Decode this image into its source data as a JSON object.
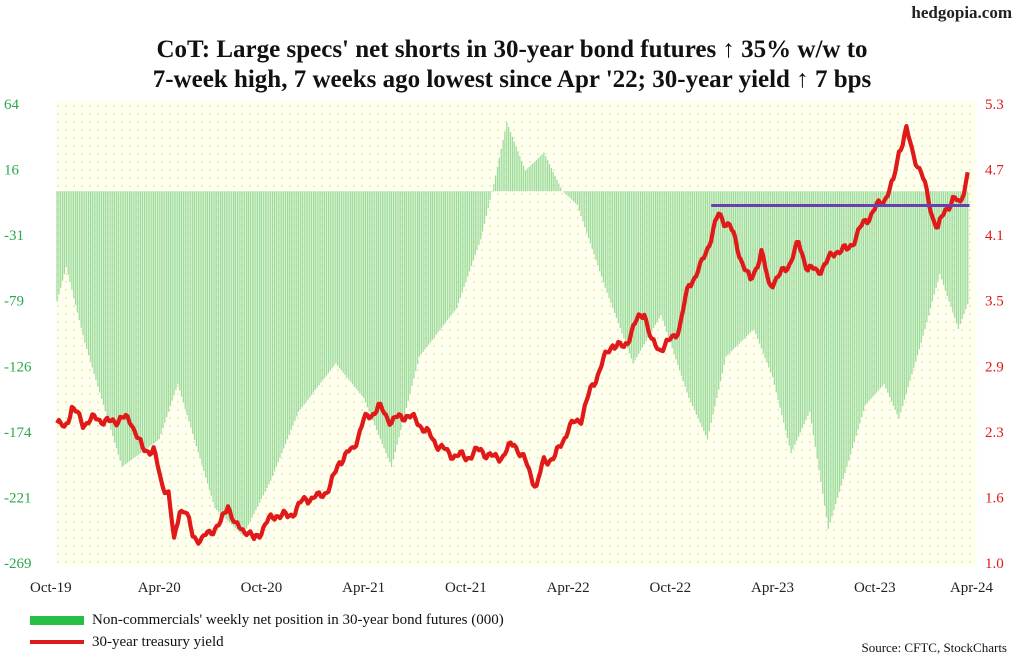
{
  "watermark": "hedgopia.com",
  "title_line1": "CoT: Large specs' net shorts in 30-year bond futures ↑ 35% w/w to",
  "title_line2": "7-week high, 7 weeks ago lowest since Apr '22; 30-year yield ↑ 7 bps",
  "legend": {
    "bars": "Non-commercials' weekly net position in 30-year bond futures (000)",
    "line": "30-year treasury yield"
  },
  "source": "Source: CFTC, StockCharts",
  "chart_data": {
    "type": "bar+line",
    "x_tick_labels": [
      "Oct-19",
      "Apr-20",
      "Oct-20",
      "Apr-21",
      "Oct-21",
      "Apr-22",
      "Oct-22",
      "Apr-23",
      "Oct-23",
      "Apr-24"
    ],
    "left_axis": {
      "ticks": [
        "64",
        "16",
        "-31",
        "-79",
        "-126",
        "-174",
        "-221",
        "-269"
      ],
      "range": [
        -269,
        64
      ],
      "color": "#2aa84a"
    },
    "right_axis": {
      "ticks": [
        "5.3",
        "4.7",
        "4.1",
        "3.5",
        "2.9",
        "2.3",
        "1.6",
        "1.0"
      ],
      "range": [
        1.0,
        5.3
      ],
      "color": "#e01919"
    },
    "bar_series": {
      "name": "Non-commercials' weekly net position in 30-year bond futures (000)",
      "color": "#9ddc9d",
      "keypoints": [
        {
          "x": 0,
          "y": -80
        },
        {
          "x": 0.5,
          "y": -55
        },
        {
          "x": 1.5,
          "y": -110
        },
        {
          "x": 3.5,
          "y": -200
        },
        {
          "x": 5.5,
          "y": -180
        },
        {
          "x": 6.5,
          "y": -140
        },
        {
          "x": 8.5,
          "y": -230
        },
        {
          "x": 10,
          "y": -250
        },
        {
          "x": 11.5,
          "y": -210
        },
        {
          "x": 13,
          "y": -160
        },
        {
          "x": 15,
          "y": -125
        },
        {
          "x": 16.5,
          "y": -150
        },
        {
          "x": 18,
          "y": -200
        },
        {
          "x": 19.5,
          "y": -120
        },
        {
          "x": 21.5,
          "y": -85
        },
        {
          "x": 22.8,
          "y": -35
        },
        {
          "x": 23.5,
          "y": 5
        },
        {
          "x": 24.2,
          "y": 50
        },
        {
          "x": 25.2,
          "y": 15
        },
        {
          "x": 26.2,
          "y": 28
        },
        {
          "x": 27.2,
          "y": 0
        },
        {
          "x": 28,
          "y": -10
        },
        {
          "x": 29.5,
          "y": -70
        },
        {
          "x": 31,
          "y": -125
        },
        {
          "x": 32.5,
          "y": -90
        },
        {
          "x": 34,
          "y": -150
        },
        {
          "x": 35,
          "y": -180
        },
        {
          "x": 36,
          "y": -120
        },
        {
          "x": 37.5,
          "y": -100
        },
        {
          "x": 38.5,
          "y": -135
        },
        {
          "x": 39.5,
          "y": -190
        },
        {
          "x": 40.5,
          "y": -160
        },
        {
          "x": 41.5,
          "y": -245
        },
        {
          "x": 42.5,
          "y": -200
        },
        {
          "x": 43.5,
          "y": -155
        },
        {
          "x": 44.5,
          "y": -140
        },
        {
          "x": 45.3,
          "y": -165
        },
        {
          "x": 46.5,
          "y": -110
        },
        {
          "x": 47.5,
          "y": -60
        },
        {
          "x": 48.5,
          "y": -100
        },
        {
          "x": 49,
          "y": -82
        }
      ]
    },
    "line_series": {
      "name": "30-year treasury yield",
      "color": "#e01919",
      "keypoints": [
        {
          "x": 0,
          "y": 2.3
        },
        {
          "x": 0.4,
          "y": 2.25
        },
        {
          "x": 0.8,
          "y": 2.45
        },
        {
          "x": 1.4,
          "y": 2.3
        },
        {
          "x": 2.2,
          "y": 2.35
        },
        {
          "x": 2.8,
          "y": 2.3
        },
        {
          "x": 3.4,
          "y": 2.35
        },
        {
          "x": 4,
          "y": 2.32
        },
        {
          "x": 4.6,
          "y": 2.05
        },
        {
          "x": 5.2,
          "y": 2.05
        },
        {
          "x": 5.6,
          "y": 1.75
        },
        {
          "x": 6,
          "y": 1.65
        },
        {
          "x": 6.3,
          "y": 1.18
        },
        {
          "x": 6.6,
          "y": 1.5
        },
        {
          "x": 6.9,
          "y": 1.48
        },
        {
          "x": 7.3,
          "y": 1.25
        },
        {
          "x": 7.8,
          "y": 1.2
        },
        {
          "x": 8.3,
          "y": 1.3
        },
        {
          "x": 8.8,
          "y": 1.35
        },
        {
          "x": 9.2,
          "y": 1.55
        },
        {
          "x": 9.6,
          "y": 1.33
        },
        {
          "x": 10.2,
          "y": 1.3
        },
        {
          "x": 10.6,
          "y": 1.2
        },
        {
          "x": 11.2,
          "y": 1.35
        },
        {
          "x": 11.8,
          "y": 1.45
        },
        {
          "x": 12.4,
          "y": 1.42
        },
        {
          "x": 12.9,
          "y": 1.5
        },
        {
          "x": 13.4,
          "y": 1.6
        },
        {
          "x": 14,
          "y": 1.6
        },
        {
          "x": 14.7,
          "y": 1.7
        },
        {
          "x": 15.2,
          "y": 1.95
        },
        {
          "x": 15.9,
          "y": 2.05
        },
        {
          "x": 16.5,
          "y": 2.32
        },
        {
          "x": 17.3,
          "y": 2.45
        },
        {
          "x": 18,
          "y": 2.32
        },
        {
          "x": 18.8,
          "y": 2.38
        },
        {
          "x": 19.5,
          "y": 2.3
        },
        {
          "x": 20.2,
          "y": 2.15
        },
        {
          "x": 21,
          "y": 2.02
        },
        {
          "x": 22,
          "y": 1.98
        },
        {
          "x": 22.8,
          "y": 2.05
        },
        {
          "x": 23.5,
          "y": 1.97
        },
        {
          "x": 24,
          "y": 2.0
        },
        {
          "x": 24.6,
          "y": 2.12
        },
        {
          "x": 25.3,
          "y": 1.9
        },
        {
          "x": 25.8,
          "y": 1.7
        },
        {
          "x": 26.2,
          "y": 1.95
        },
        {
          "x": 26.8,
          "y": 1.98
        },
        {
          "x": 27.5,
          "y": 2.25
        },
        {
          "x": 28.2,
          "y": 2.35
        },
        {
          "x": 28.7,
          "y": 2.6
        },
        {
          "x": 29.3,
          "y": 2.85
        },
        {
          "x": 29.9,
          "y": 3.05
        },
        {
          "x": 30.5,
          "y": 3.0
        },
        {
          "x": 31,
          "y": 3.2
        },
        {
          "x": 31.6,
          "y": 3.35
        },
        {
          "x": 32,
          "y": 3.05
        },
        {
          "x": 32.4,
          "y": 3.0
        },
        {
          "x": 32.9,
          "y": 3.05
        },
        {
          "x": 33.5,
          "y": 3.2
        },
        {
          "x": 34,
          "y": 3.6
        },
        {
          "x": 34.6,
          "y": 3.75
        },
        {
          "x": 35.3,
          "y": 4.1
        },
        {
          "x": 35.6,
          "y": 4.25
        },
        {
          "x": 36.2,
          "y": 4.15
        },
        {
          "x": 36.8,
          "y": 3.85
        },
        {
          "x": 37.3,
          "y": 3.62
        },
        {
          "x": 37.9,
          "y": 3.9
        },
        {
          "x": 38.3,
          "y": 3.6
        },
        {
          "x": 38.9,
          "y": 3.68
        },
        {
          "x": 39.4,
          "y": 3.8
        },
        {
          "x": 39.9,
          "y": 3.98
        },
        {
          "x": 40.4,
          "y": 3.75
        },
        {
          "x": 40.9,
          "y": 3.72
        },
        {
          "x": 41.4,
          "y": 3.8
        },
        {
          "x": 41.9,
          "y": 3.92
        },
        {
          "x": 42.5,
          "y": 3.92
        },
        {
          "x": 43,
          "y": 4.05
        },
        {
          "x": 43.5,
          "y": 4.2
        },
        {
          "x": 44,
          "y": 4.3
        },
        {
          "x": 44.5,
          "y": 4.4
        },
        {
          "x": 45,
          "y": 4.55
        },
        {
          "x": 45.3,
          "y": 4.85
        },
        {
          "x": 45.7,
          "y": 5.05
        },
        {
          "x": 46,
          "y": 4.85
        },
        {
          "x": 46.5,
          "y": 4.65
        },
        {
          "x": 47.1,
          "y": 4.25
        },
        {
          "x": 47.4,
          "y": 4.12
        },
        {
          "x": 47.8,
          "y": 4.3
        },
        {
          "x": 48.2,
          "y": 4.4
        },
        {
          "x": 48.6,
          "y": 4.35
        },
        {
          "x": 49,
          "y": 4.65
        }
      ]
    },
    "reference_line": {
      "color": "#6a3fb0",
      "x_start": 35.2,
      "x_end": 49.1,
      "y": 4.34
    }
  }
}
